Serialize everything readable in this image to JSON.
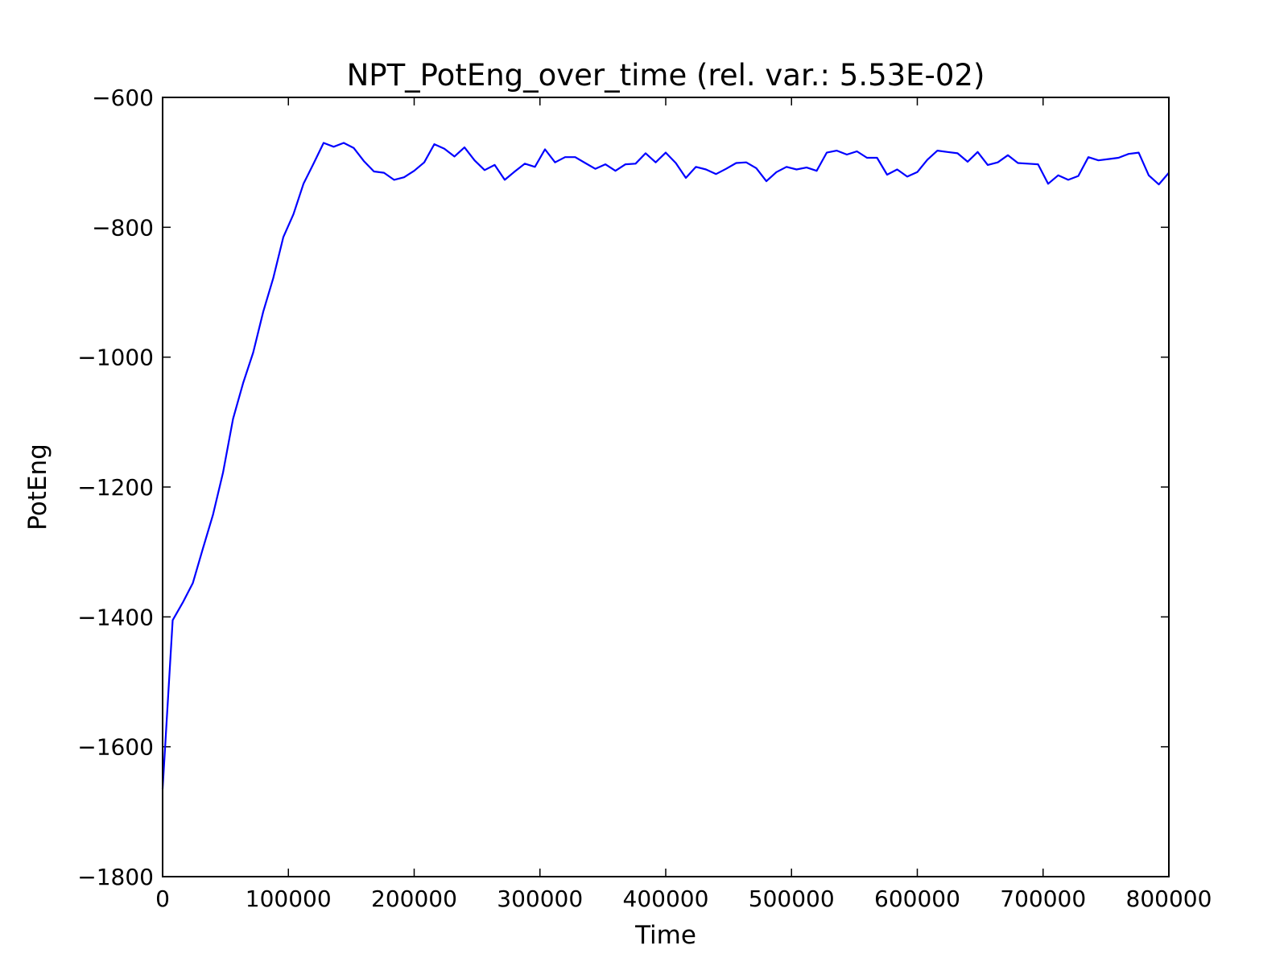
{
  "chart_data": {
    "type": "line",
    "title": "NPT_PotEng_over_time (rel. var.: 5.53E-02)",
    "xlabel": "Time",
    "ylabel": "PotEng",
    "xlim": [
      0,
      800000
    ],
    "ylim": [
      -1800,
      -600
    ],
    "xticks": [
      0,
      100000,
      200000,
      300000,
      400000,
      500000,
      600000,
      700000,
      800000
    ],
    "xtick_labels": [
      "0",
      "100000",
      "200000",
      "300000",
      "400000",
      "500000",
      "600000",
      "700000",
      "800000"
    ],
    "yticks": [
      -1800,
      -1600,
      -1400,
      -1200,
      -1000,
      -800,
      -600
    ],
    "ytick_labels": [
      "−1800",
      "−1600",
      "−1400",
      "−1200",
      "−1000",
      "−800",
      "−600"
    ],
    "grid": false,
    "series": [
      {
        "color": "#0000ff",
        "x": [
          0,
          8000,
          16000,
          24000,
          32000,
          40000,
          48000,
          56000,
          64000,
          72000,
          80000,
          88000,
          96000,
          104000,
          112000,
          120000,
          128000,
          136000,
          144000,
          152000,
          160000,
          168000,
          176000,
          184000,
          192000,
          200000,
          208000,
          216000,
          224000,
          232000,
          240000,
          248000,
          256000,
          264000,
          272000,
          280000,
          288000,
          296000,
          304000,
          312000,
          320000,
          328000,
          336000,
          344000,
          352000,
          360000,
          368000,
          376000,
          384000,
          392000,
          400000,
          408000,
          416000,
          424000,
          432000,
          440000,
          448000,
          456000,
          464000,
          472000,
          480000,
          488000,
          496000,
          504000,
          512000,
          520000,
          528000,
          536000,
          544000,
          552000,
          560000,
          568000,
          576000,
          584000,
          592000,
          600000,
          608000,
          616000,
          624000,
          632000,
          640000,
          648000,
          656000,
          664000,
          672000,
          680000,
          688000,
          696000,
          704000,
          712000,
          720000,
          728000,
          736000,
          744000,
          752000,
          760000,
          768000,
          776000,
          784000,
          792000,
          800000
        ],
        "y": [
          -1665,
          -1405,
          -1378,
          -1348,
          -1295,
          -1243,
          -1178,
          -1095,
          -1040,
          -993,
          -930,
          -878,
          -815,
          -780,
          -733,
          -702,
          -670,
          -676,
          -670,
          -678,
          -698,
          -714,
          -716,
          -727,
          -723,
          -713,
          -700,
          -672,
          -679,
          -691,
          -677,
          -697,
          -712,
          -704,
          -727,
          -714,
          -702,
          -707,
          -680,
          -700,
          -692,
          -692,
          -701,
          -710,
          -703,
          -713,
          -703,
          -702,
          -686,
          -700,
          -685,
          -701,
          -724,
          -707,
          -711,
          -718,
          -710,
          -701,
          -700,
          -709,
          -729,
          -715,
          -707,
          -711,
          -708,
          -713,
          -685,
          -682,
          -688,
          -683,
          -693,
          -693,
          -719,
          -711,
          -722,
          -715,
          -696,
          -682,
          -684,
          -686,
          -699,
          -684,
          -704,
          -700,
          -689,
          -701,
          -702,
          -703,
          -733,
          -720,
          -727,
          -721,
          -692,
          -697,
          -695,
          -693,
          -687,
          -685,
          -720,
          -734,
          -716
        ]
      }
    ]
  }
}
